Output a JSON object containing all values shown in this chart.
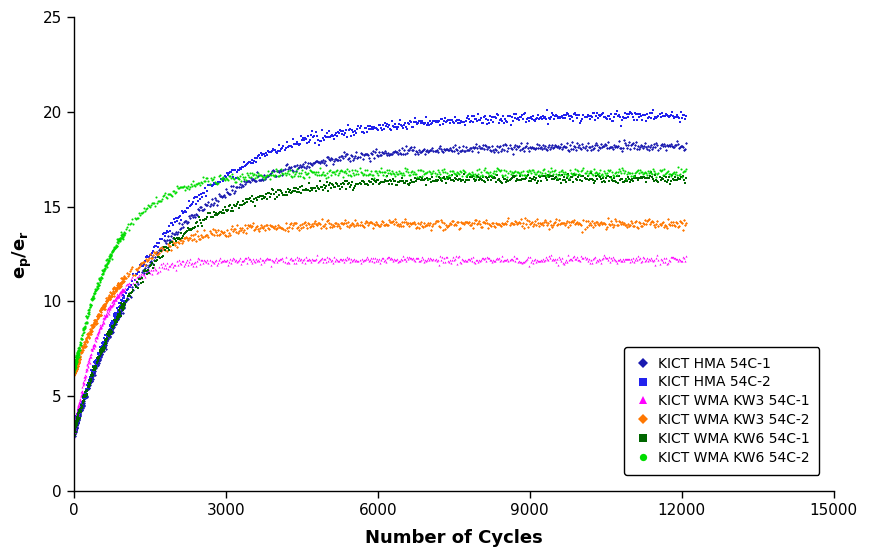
{
  "title": "",
  "xlabel": "Number of Cycles",
  "ylabel": "e$_p$/e$_r$",
  "xlim": [
    0,
    15000
  ],
  "ylim": [
    0,
    25
  ],
  "xticks": [
    0,
    3000,
    6000,
    9000,
    12000,
    15000
  ],
  "yticks": [
    0,
    5,
    10,
    15,
    20,
    25
  ],
  "series": [
    {
      "label": "KICT HMA 54C-1",
      "color": "#1a1ab0",
      "marker": "D",
      "start_y": 3.0,
      "final_y": 18.2,
      "k": 0.0006,
      "noise": 0.12
    },
    {
      "label": "KICT HMA 54C-2",
      "color": "#2222ee",
      "marker": "s",
      "start_y": 3.2,
      "final_y": 19.8,
      "k": 0.00055,
      "noise": 0.13
    },
    {
      "label": "KICT WMA KW3 54C-1",
      "color": "#ff00ff",
      "marker": "^",
      "start_y": 3.0,
      "final_y": 12.2,
      "k": 0.0018,
      "noise": 0.1
    },
    {
      "label": "KICT WMA KW3 54C-2",
      "color": "#ff7700",
      "marker": "D",
      "start_y": 6.2,
      "final_y": 14.1,
      "k": 0.001,
      "noise": 0.12
    },
    {
      "label": "KICT WMA KW6 54C-1",
      "color": "#006600",
      "marker": "s",
      "start_y": 3.1,
      "final_y": 16.5,
      "k": 0.0007,
      "noise": 0.12
    },
    {
      "label": "KICT WMA KW6 54C-2",
      "color": "#00dd00",
      "marker": "o",
      "start_y": 6.3,
      "final_y": 16.8,
      "k": 0.0012,
      "noise": 0.12
    }
  ],
  "background_color": "#ffffff",
  "figsize": [
    8.69,
    5.58
  ],
  "dpi": 100
}
